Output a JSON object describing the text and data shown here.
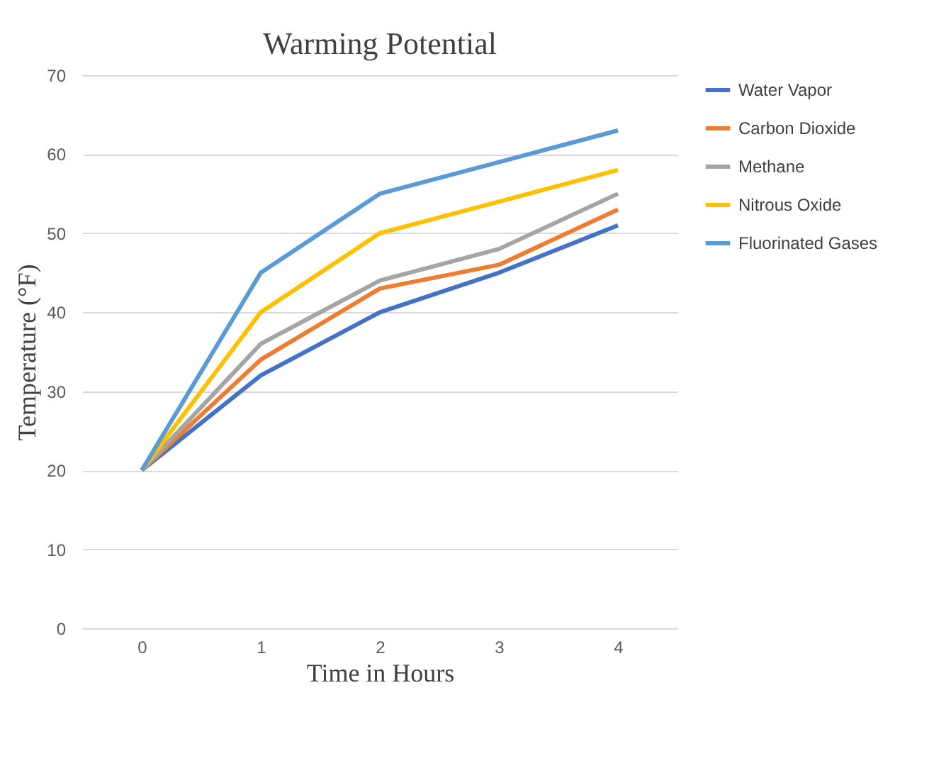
{
  "chart_data": {
    "type": "line",
    "title": "Warming Potential",
    "xlabel": "Time in Hours",
    "ylabel": "Temperature (°F)",
    "categories": [
      "0",
      "1",
      "2",
      "3",
      "4"
    ],
    "series": [
      {
        "name": "Water Vapor",
        "color": "#4472c4",
        "values": [
          20,
          32,
          40,
          45,
          51
        ]
      },
      {
        "name": "Carbon Dioxide",
        "color": "#ed7d31",
        "values": [
          20,
          34,
          43,
          46,
          53
        ]
      },
      {
        "name": "Methane",
        "color": "#a5a5a5",
        "values": [
          20,
          36,
          44,
          48,
          55
        ]
      },
      {
        "name": "Nitrous Oxide",
        "color": "#ffc000",
        "values": [
          20,
          40,
          50,
          54,
          58
        ]
      },
      {
        "name": "Fluorinated Gases",
        "color": "#5b9bd5",
        "values": [
          20,
          45,
          55,
          59,
          63
        ]
      }
    ],
    "ylim": [
      0,
      70
    ],
    "yticks": [
      0,
      10,
      20,
      30,
      40,
      50,
      60,
      70
    ],
    "grid": "y",
    "legend": "right",
    "marker": "none",
    "line_style": "solid"
  }
}
